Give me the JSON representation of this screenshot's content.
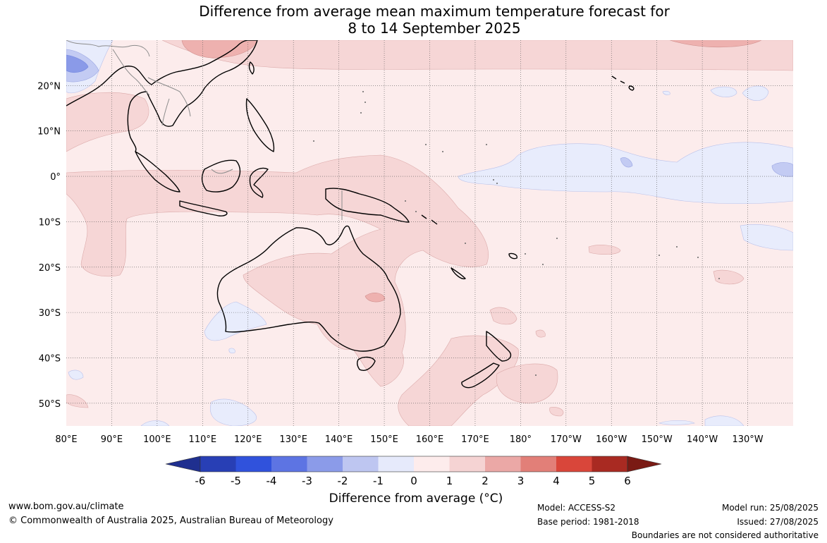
{
  "title": {
    "line1": "Difference from average mean maximum temperature forecast for",
    "line2": "8 to 14 September 2025"
  },
  "map": {
    "lat_labels": [
      "20°N",
      "10°N",
      "0°",
      "10°S",
      "20°S",
      "30°S",
      "40°S",
      "50°S"
    ],
    "lon_labels": [
      "80°E",
      "90°E",
      "100°E",
      "110°E",
      "120°E",
      "130°E",
      "140°E",
      "150°E",
      "160°E",
      "170°E",
      "180°",
      "170°W",
      "160°W",
      "150°W",
      "140°W",
      "130°W"
    ],
    "lat_range": [
      -55,
      30
    ],
    "lon_range": [
      80,
      240
    ],
    "gridlines": true
  },
  "colorbar": {
    "ticks": [
      "-6",
      "-5",
      "-4",
      "-3",
      "-2",
      "-1",
      "0",
      "1",
      "2",
      "3",
      "4",
      "5",
      "6"
    ],
    "colors": [
      "#1f2f8f",
      "#283fb5",
      "#3052dc",
      "#5d74e3",
      "#8b9be9",
      "#bec6f1",
      "#e6eafb",
      "#fdecec",
      "#f5d3d3",
      "#eba8a6",
      "#e27f78",
      "#d9463a",
      "#a92a22",
      "#7a1a14"
    ],
    "label": "Difference from average (°C)"
  },
  "footer": {
    "website": "www.bom.gov.au/climate",
    "copyright": "© Commonwealth of Australia 2025, Australian Bureau of Meteorology",
    "model": "Model: ACCESS-S2",
    "base_period": "Base period: 1981-2018",
    "model_run": "Model run: 25/08/2025",
    "issued": "Issued: 27/08/2025",
    "boundaries_note": "Boundaries are not considered authoritative"
  }
}
